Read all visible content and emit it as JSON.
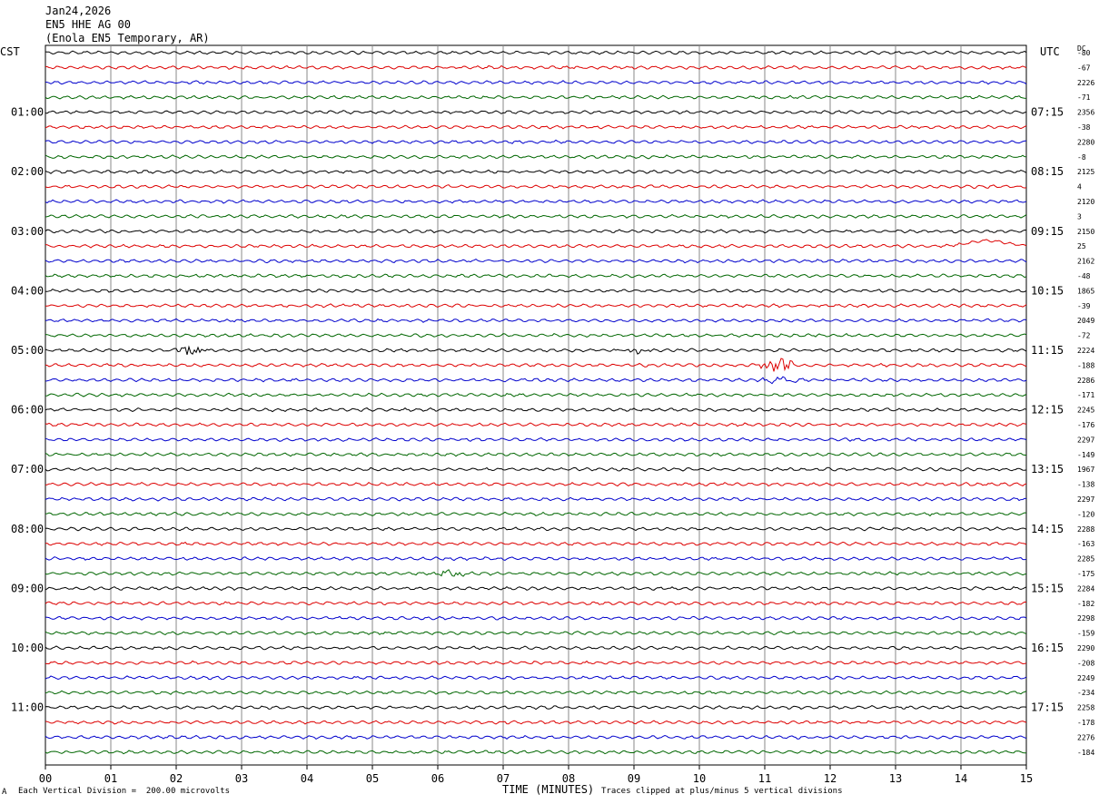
{
  "header": {
    "date": "Jan24,2026",
    "station": "EN5 HHE AG 00",
    "location": "(Enola EN5 Temporary, AR)"
  },
  "left_tz": "CST",
  "right_tz": "UTC",
  "dc_label": "DC",
  "footer": {
    "scale": "Each Vertical Division =  200.00 microvolts",
    "clip": "Traces clipped at plus/minus 5 vertical divisions",
    "mark": "A"
  },
  "colors": {
    "black": "#000000",
    "red": "#dd0000",
    "blue": "#0000cc",
    "green": "#006600",
    "grid": "#888888"
  },
  "chart_data": {
    "type": "line",
    "title": "",
    "xlabel": "TIME (MINUTES)",
    "ylabel": "",
    "xlim": [
      0,
      15
    ],
    "x_ticks": [
      "00",
      "01",
      "02",
      "03",
      "04",
      "05",
      "06",
      "07",
      "08",
      "09",
      "10",
      "11",
      "12",
      "13",
      "14",
      "15"
    ],
    "left_time_labels": [
      "01:00",
      "02:00",
      "03:00",
      "04:00",
      "05:00",
      "06:00",
      "07:00",
      "08:00",
      "09:00",
      "10:00",
      "11:00"
    ],
    "right_time_labels": [
      "07:15",
      "08:15",
      "09:15",
      "10:15",
      "11:15",
      "12:15",
      "13:15",
      "14:15",
      "15:15",
      "16:15",
      "17:15"
    ],
    "trace_colors": [
      "black",
      "red",
      "blue",
      "green"
    ],
    "trace_count": 48,
    "dc_offsets": [
      "-80",
      "-67",
      "2226",
      "-71",
      "2356",
      "-38",
      "2280",
      "-8",
      "2125",
      "4",
      "2120",
      "3",
      "2150",
      "25",
      "2162",
      "-48",
      "1865",
      "-39",
      "2049",
      "-72",
      "2224",
      "-188",
      "2286",
      "-171",
      "2245",
      "-176",
      "2297",
      "-149",
      "1967",
      "-138",
      "2297",
      "-120",
      "2288",
      "-163",
      "2285",
      "-175",
      "2284",
      "-182",
      "2298",
      "-159",
      "2290",
      "-208",
      "2249",
      "-234",
      "2258",
      "-178",
      "2276",
      "-184"
    ],
    "events": [
      {
        "trace": 20,
        "minute": 2.2,
        "amp": 6,
        "note": "burst"
      },
      {
        "trace": 20,
        "minute": 9.0,
        "amp": 5
      },
      {
        "trace": 21,
        "minute": 11.2,
        "amp": 9
      },
      {
        "trace": 22,
        "minute": 11.25,
        "amp": 6
      },
      {
        "trace": 13,
        "minute": 14.4,
        "amp": 0,
        "drift": -6
      },
      {
        "trace": 35,
        "minute": 6.2,
        "amp": 5
      }
    ]
  }
}
